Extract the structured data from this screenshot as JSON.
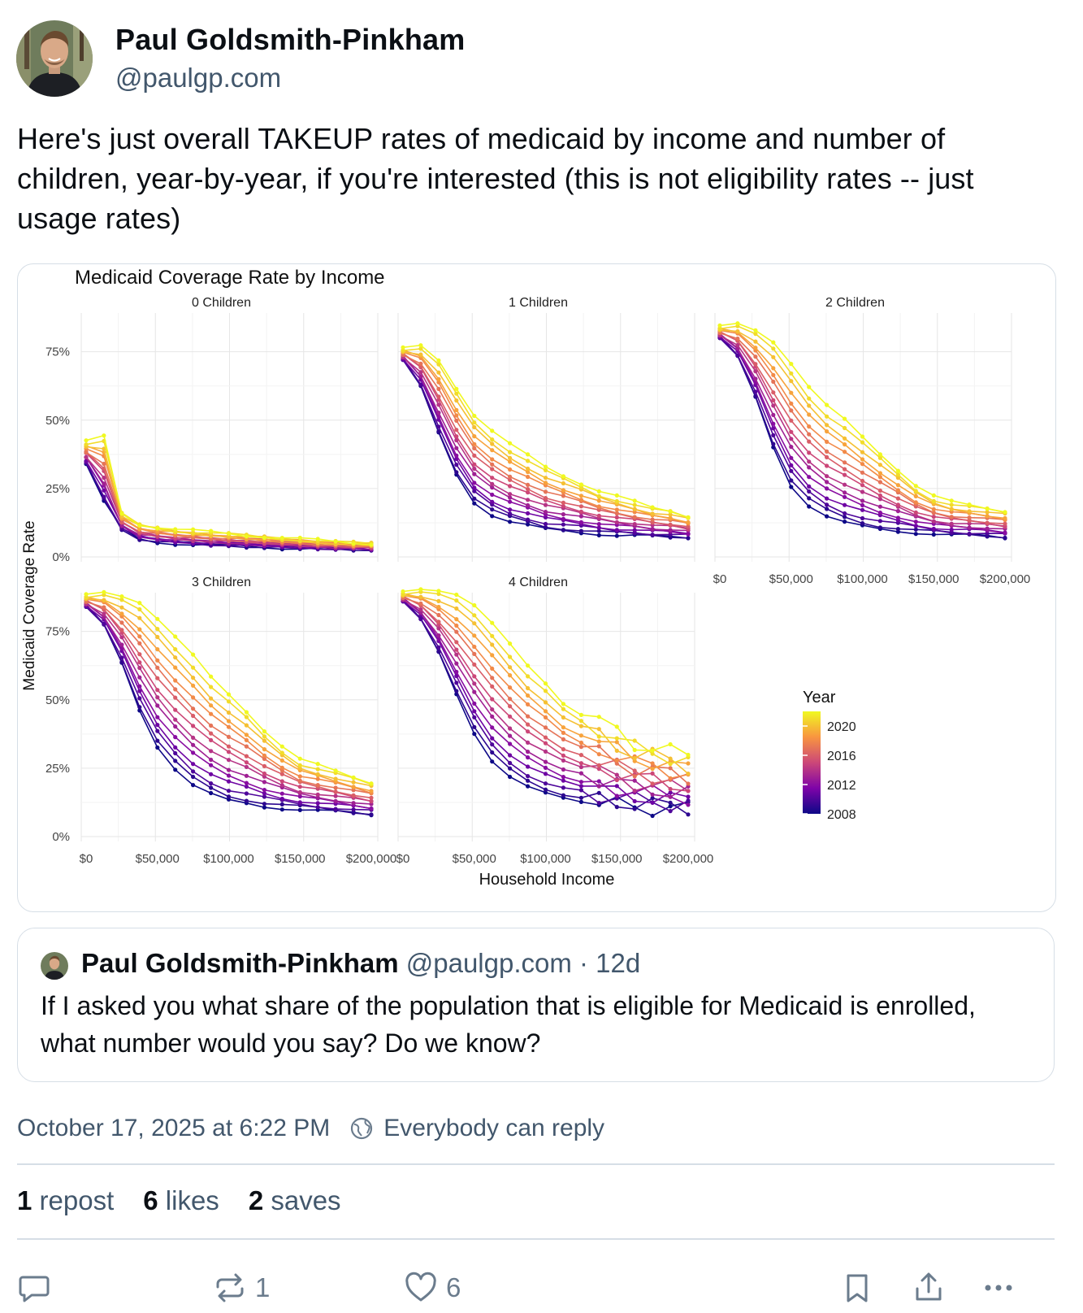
{
  "author": {
    "name": "Paul Goldsmith-Pinkham",
    "handle": "@paulgp.com"
  },
  "post": {
    "text": "Here's just overall TAKEUP rates of medicaid by income and number of children, year-by-year, if you're interested (this is not eligibility rates -- just usage rates)"
  },
  "chart_data": {
    "type": "line",
    "title": "Medicaid Coverage Rate by Income",
    "xlabel": "Household Income",
    "ylabel": "Medicaid Coverage Rate",
    "x": [
      0,
      12500,
      25000,
      37500,
      50000,
      62500,
      75000,
      87500,
      100000,
      112500,
      125000,
      137500,
      150000,
      162500,
      175000,
      187500,
      200000
    ],
    "xlim": [
      0,
      200000
    ],
    "ylim": [
      0,
      0.85
    ],
    "x_ticks": [
      "$0",
      "$50,000",
      "$100,000",
      "$150,000",
      "$200,000"
    ],
    "y_ticks": [
      "0%",
      "25%",
      "50%",
      "75%"
    ],
    "legend": {
      "title": "Year",
      "labels": [
        "2020",
        "2016",
        "2012",
        "2008"
      ],
      "placement": "right",
      "range": [
        2008,
        2022
      ]
    },
    "colors": {
      "low": "#0d0887",
      "mid": "#cc4778",
      "high": "#f0f921"
    },
    "panels": [
      {
        "label": "0 Children",
        "low": [
          0.34,
          0.2,
          0.1,
          0.065,
          0.055,
          0.05,
          0.045,
          0.042,
          0.04,
          0.038,
          0.036,
          0.034,
          0.032,
          0.03,
          0.029,
          0.028,
          0.027
        ],
        "high": [
          0.42,
          0.44,
          0.16,
          0.12,
          0.11,
          0.1,
          0.095,
          0.09,
          0.085,
          0.08,
          0.075,
          0.07,
          0.065,
          0.06,
          0.055,
          0.052,
          0.05
        ]
      },
      {
        "label": "1 Children",
        "low": [
          0.72,
          0.62,
          0.45,
          0.3,
          0.2,
          0.155,
          0.13,
          0.115,
          0.1,
          0.095,
          0.09,
          0.085,
          0.08,
          0.078,
          0.075,
          0.072,
          0.07
        ],
        "high": [
          0.76,
          0.77,
          0.72,
          0.62,
          0.52,
          0.46,
          0.41,
          0.37,
          0.33,
          0.3,
          0.27,
          0.24,
          0.22,
          0.2,
          0.18,
          0.17,
          0.15
        ]
      },
      {
        "label": "2 Children",
        "low": [
          0.8,
          0.73,
          0.58,
          0.4,
          0.26,
          0.19,
          0.15,
          0.125,
          0.11,
          0.1,
          0.095,
          0.09,
          0.085,
          0.08,
          0.078,
          0.075,
          0.07
        ],
        "high": [
          0.84,
          0.85,
          0.83,
          0.79,
          0.71,
          0.62,
          0.55,
          0.5,
          0.44,
          0.38,
          0.32,
          0.26,
          0.22,
          0.2,
          0.19,
          0.18,
          0.17
        ]
      },
      {
        "label": "3 Children",
        "low": [
          0.84,
          0.77,
          0.63,
          0.46,
          0.33,
          0.25,
          0.19,
          0.155,
          0.13,
          0.12,
          0.11,
          0.105,
          0.1,
          0.095,
          0.09,
          0.085,
          0.08
        ],
        "high": [
          0.88,
          0.89,
          0.88,
          0.86,
          0.8,
          0.73,
          0.66,
          0.58,
          0.52,
          0.46,
          0.39,
          0.33,
          0.28,
          0.26,
          0.24,
          0.22,
          0.2
        ]
      },
      {
        "label": "4 Children",
        "low": [
          0.86,
          0.79,
          0.67,
          0.52,
          0.38,
          0.28,
          0.22,
          0.18,
          0.155,
          0.14,
          0.13,
          0.12,
          0.115,
          0.11,
          0.105,
          0.1,
          0.1
        ],
        "high": [
          0.89,
          0.9,
          0.9,
          0.89,
          0.85,
          0.78,
          0.7,
          0.62,
          0.56,
          0.49,
          0.45,
          0.42,
          0.38,
          0.34,
          0.33,
          0.31,
          0.29
        ]
      }
    ]
  },
  "quote": {
    "name": "Paul Goldsmith-Pinkham",
    "meta": "@paulgp.com · 12d",
    "text": "If I asked you what share of the population that is eligible for Medicaid is enrolled, what number would you say? Do we know?"
  },
  "meta": {
    "timestamp": "October 17, 2025 at 6:22 PM",
    "reply_setting": "Everybody can reply"
  },
  "stats": {
    "repost_count": "1",
    "repost_label": "repost",
    "like_count": "6",
    "like_label": "likes",
    "save_count": "2",
    "save_label": "saves"
  },
  "actions": {
    "repost_count": "1",
    "like_count": "6"
  }
}
